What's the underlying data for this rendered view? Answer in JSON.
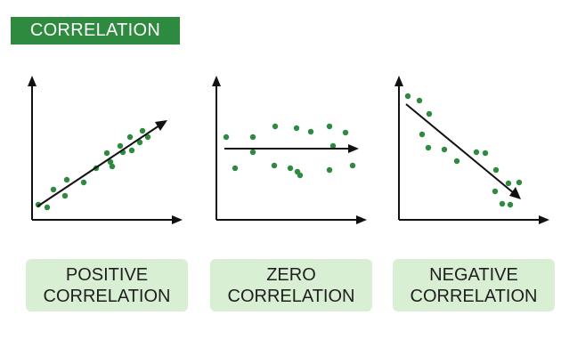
{
  "header": {
    "title": "CORRELATION",
    "badge_color": "#2d8a3e"
  },
  "colors": {
    "axis": "#111111",
    "point": "#2d8a3e",
    "label_bg": "#d9efd3"
  },
  "panels": [
    {
      "id": "positive",
      "label_lines": [
        "POSITIVE",
        "CORRELATION"
      ],
      "trend": "positive"
    },
    {
      "id": "zero",
      "label_lines": [
        "ZERO",
        "CORRELATION"
      ],
      "trend": "none"
    },
    {
      "id": "negative",
      "label_lines": [
        "NEGATIVE",
        "CORRELATION"
      ],
      "trend": "negative"
    }
  ]
}
